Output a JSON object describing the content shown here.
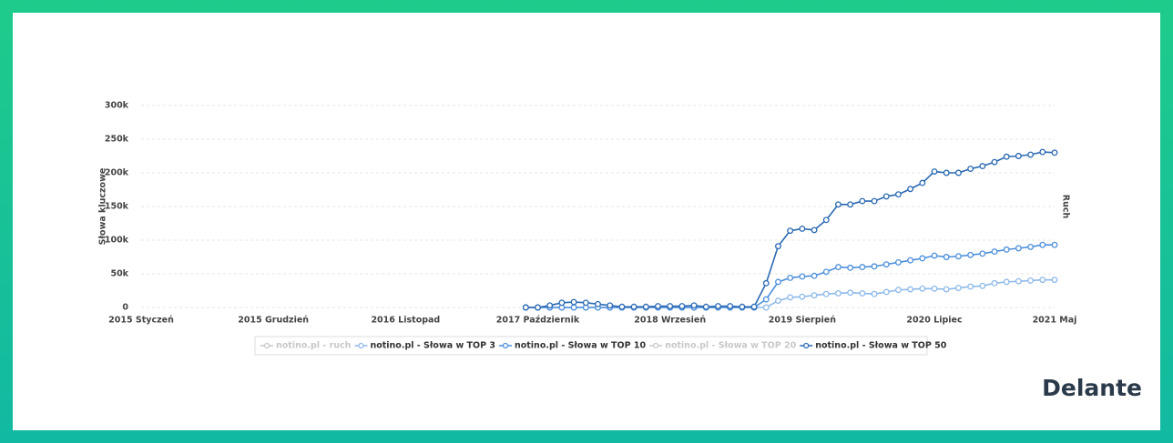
{
  "chart_data": {
    "type": "line",
    "y_label": "Słowa kluczowe",
    "y2_label": "Ruch",
    "brand": "Delante",
    "categories": [
      "2015 Styczeń",
      null,
      null,
      null,
      null,
      null,
      null,
      null,
      null,
      null,
      null,
      "2015 Grudzień",
      null,
      null,
      null,
      null,
      null,
      null,
      null,
      null,
      null,
      null,
      "2016 Listopad",
      null,
      null,
      null,
      null,
      null,
      null,
      null,
      null,
      null,
      null,
      "2017 Październik",
      null,
      null,
      null,
      null,
      null,
      null,
      null,
      null,
      null,
      null,
      "2018 Wrzesień",
      null,
      null,
      null,
      null,
      null,
      null,
      null,
      null,
      null,
      null,
      "2019 Sierpień",
      null,
      null,
      null,
      null,
      null,
      null,
      null,
      null,
      null,
      null,
      "2020 Lipiec",
      null,
      null,
      null,
      null,
      null,
      null,
      null,
      null,
      null,
      "2021 Maj"
    ],
    "ylim": [
      0,
      300000
    ],
    "yticks": [
      0,
      {
        "value": 50000,
        "label": "50k"
      },
      {
        "value": 100000,
        "label": "100k"
      },
      {
        "value": 150000,
        "label": "150k"
      },
      {
        "value": 200000,
        "label": "200k"
      },
      {
        "value": 250000,
        "label": "250k"
      },
      {
        "value": 300000,
        "label": "300k"
      }
    ],
    "grid": true,
    "series": [
      {
        "name": "notino.pl - ruch",
        "color": "#c8c8c8",
        "hidden": true
      },
      {
        "name": "notino.pl - Słowa w TOP 3",
        "color": "#8db9ea",
        "values": [
          null,
          null,
          null,
          null,
          null,
          null,
          null,
          null,
          null,
          null,
          null,
          null,
          null,
          null,
          null,
          null,
          null,
          null,
          null,
          null,
          null,
          null,
          null,
          null,
          null,
          null,
          null,
          null,
          null,
          null,
          null,
          null,
          0,
          0,
          0,
          0,
          0,
          0,
          0,
          0,
          0,
          0,
          0,
          0,
          0,
          0,
          0,
          0,
          0,
          0,
          0,
          0,
          0,
          10000,
          15000,
          16000,
          18000,
          20000,
          21000,
          22000,
          21000,
          20000,
          23000,
          26000,
          27000,
          28000,
          28000,
          27000,
          29000,
          31000,
          32000,
          36000,
          38000,
          39000,
          40000,
          41000,
          41000
        ]
      },
      {
        "name": "notino.pl - Słowa w TOP 10",
        "color": "#4d8fdc",
        "values": [
          null,
          null,
          null,
          null,
          null,
          null,
          null,
          null,
          null,
          null,
          null,
          null,
          null,
          null,
          null,
          null,
          null,
          null,
          null,
          null,
          null,
          null,
          null,
          null,
          null,
          null,
          null,
          null,
          null,
          null,
          null,
          null,
          0,
          0,
          0,
          0,
          0,
          0,
          0,
          0,
          0,
          0,
          0,
          0,
          0,
          0,
          0,
          0,
          0,
          0,
          0,
          0,
          12000,
          38000,
          44000,
          46000,
          47000,
          53000,
          60000,
          59000,
          60000,
          61000,
          64000,
          67000,
          70000,
          73000,
          77000,
          75000,
          76000,
          78000,
          80000,
          83000,
          86000,
          88000,
          90000,
          93000,
          93000
        ]
      },
      {
        "name": "notino.pl - Słowa w TOP 20",
        "color": "#c8c8c8",
        "hidden": true
      },
      {
        "name": "notino.pl - Słowa w TOP 50",
        "color": "#2a69b3",
        "values": [
          null,
          null,
          null,
          null,
          null,
          null,
          null,
          null,
          null,
          null,
          null,
          null,
          null,
          null,
          null,
          null,
          null,
          null,
          null,
          null,
          null,
          null,
          null,
          null,
          null,
          null,
          null,
          null,
          null,
          null,
          null,
          null,
          0,
          0,
          3000,
          7000,
          8000,
          7000,
          5000,
          3000,
          1000,
          1000,
          1000,
          2000,
          2000,
          2000,
          3000,
          1000,
          2000,
          2000,
          1000,
          1000,
          36000,
          91000,
          114000,
          117000,
          115000,
          130000,
          153000,
          153000,
          158000,
          158000,
          165000,
          168000,
          176000,
          185000,
          202000,
          200000,
          200000,
          206000,
          210000,
          216000,
          224000,
          225000,
          227000,
          231000,
          230000
        ]
      }
    ]
  }
}
